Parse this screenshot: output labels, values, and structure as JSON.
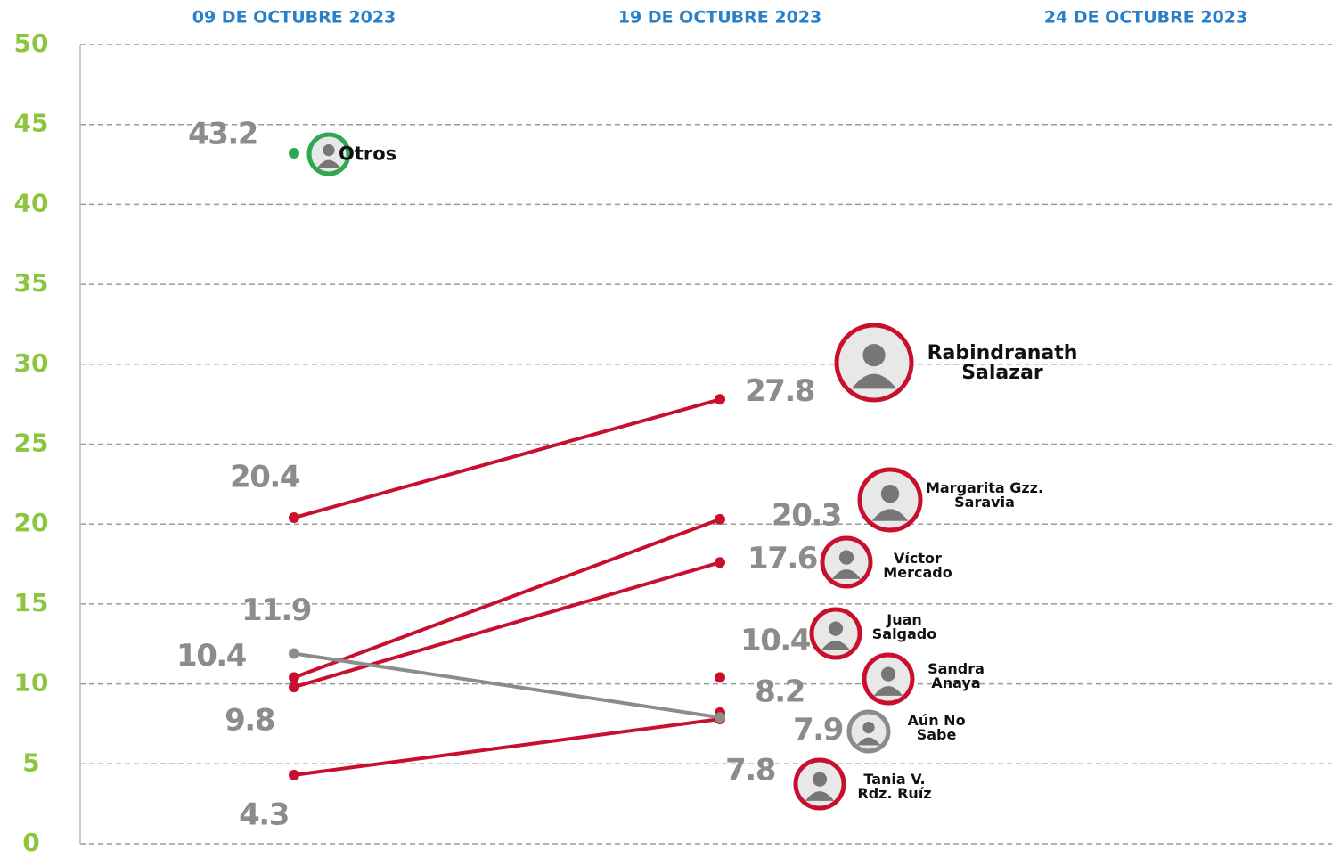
{
  "chart_data": {
    "type": "line",
    "categories": [
      "09 DE OCTUBRE 2023",
      "19 DE OCTUBRE 2023",
      "24 DE OCTUBRE 2023"
    ],
    "ylim": [
      0,
      50
    ],
    "yticks": [
      0,
      5,
      10,
      15,
      20,
      25,
      30,
      35,
      40,
      45,
      50
    ],
    "grid": true,
    "series": [
      {
        "name": "Otros",
        "color": "#2fa84f",
        "values": [
          43.2,
          null,
          null
        ]
      },
      {
        "name": "Rabindranath Salazar",
        "color": "#c8102e",
        "values": [
          20.4,
          27.8,
          null
        ]
      },
      {
        "name": "Margarita Gzz. Saravia",
        "color": "#c8102e",
        "values": [
          10.4,
          20.3,
          null
        ]
      },
      {
        "name": "Víctor Mercado",
        "color": "#c8102e",
        "values": [
          9.8,
          17.6,
          null
        ]
      },
      {
        "name": "Juan Salgado",
        "color": "#c8102e",
        "values": [
          null,
          10.4,
          null
        ]
      },
      {
        "name": "Sandra Anaya",
        "color": "#c8102e",
        "values": [
          null,
          8.2,
          null
        ]
      },
      {
        "name": "Tania V. Rdz. Ruíz",
        "color": "#c8102e",
        "values": [
          4.3,
          7.8,
          null
        ]
      },
      {
        "name": "Aún No Sabe",
        "color": "#8c8c8c",
        "values": [
          11.9,
          7.9,
          null
        ]
      }
    ]
  }
}
